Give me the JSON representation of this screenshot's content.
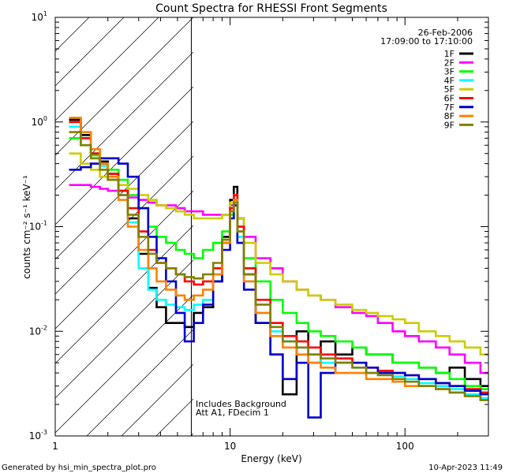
{
  "chart_data": {
    "type": "line",
    "title": "Count Spectra for RHESSI Front Segments",
    "xlabel": "Energy (keV)",
    "ylabel": "counts cm⁻² s⁻¹ keV⁻¹",
    "xscale": "log",
    "yscale": "log",
    "xlim": [
      1,
      300
    ],
    "ylim": [
      0.001,
      10
    ],
    "x_tick_labels": [
      {
        "value": 1,
        "label": "1"
      },
      {
        "value": 10,
        "label": "10"
      },
      {
        "value": 100,
        "label": "100"
      }
    ],
    "y_tick_labels": [
      {
        "value": 0.001,
        "base": "10",
        "exp": "-3"
      },
      {
        "value": 0.01,
        "base": "10",
        "exp": "-2"
      },
      {
        "value": 0.1,
        "base": "10",
        "exp": "-1"
      },
      {
        "value": 1,
        "base": "10",
        "exp": "0"
      },
      {
        "value": 10,
        "base": "10",
        "exp": "1"
      }
    ],
    "date": "26-Feb-2006",
    "time_range": "17:09:00 to 17:10:00",
    "attenuator_threshold_keV": 6,
    "notes": [
      "Includes Background",
      "Att A1, FDecim 1"
    ],
    "footer_left": "Generated by hsi_min_spectra_plot.pro",
    "footer_right": "10-Apr-2023 11:49",
    "series": [
      {
        "name": "1F",
        "color": "#000000",
        "x": [
          1.2,
          1.4,
          1.6,
          1.8,
          2.0,
          2.3,
          2.6,
          3.0,
          3.4,
          3.8,
          4.3,
          4.9,
          5.5,
          6.2,
          7.0,
          8.0,
          9.0,
          10.0,
          10.5,
          11.0,
          12.0,
          14.0,
          17.0,
          20.0,
          24.0,
          28.0,
          33.0,
          40.0,
          50.0,
          60.0,
          70.0,
          85.0,
          100.0,
          120.0,
          150.0,
          180.0,
          220.0,
          270.0
        ],
        "values": [
          1.05,
          0.75,
          0.5,
          0.42,
          0.32,
          0.22,
          0.12,
          0.055,
          0.026,
          0.017,
          0.012,
          0.012,
          0.011,
          0.015,
          0.017,
          0.03,
          0.08,
          0.18,
          0.24,
          0.12,
          0.035,
          0.012,
          0.006,
          0.0025,
          0.01,
          0.005,
          0.008,
          0.006,
          0.007,
          0.006,
          0.006,
          0.005,
          0.005,
          0.0045,
          0.004,
          0.0045,
          0.0035,
          0.003
        ]
      },
      {
        "name": "2F",
        "color": "#ff00ff",
        "x": [
          1.2,
          1.4,
          1.6,
          1.8,
          2.0,
          2.3,
          2.6,
          3.0,
          3.4,
          3.8,
          4.3,
          4.9,
          5.5,
          6.2,
          7.0,
          8.0,
          9.0,
          10.0,
          10.5,
          11.0,
          12.0,
          14.0,
          17.0,
          20.0,
          24.0,
          28.0,
          33.0,
          40.0,
          50.0,
          60.0,
          70.0,
          85.0,
          100.0,
          120.0,
          150.0,
          180.0,
          220.0,
          270.0
        ],
        "values": [
          0.25,
          0.25,
          0.24,
          0.23,
          0.22,
          0.2,
          0.19,
          0.18,
          0.17,
          0.16,
          0.16,
          0.15,
          0.14,
          0.14,
          0.13,
          0.13,
          0.13,
          0.16,
          0.2,
          0.12,
          0.08,
          0.05,
          0.04,
          0.03,
          0.025,
          0.022,
          0.02,
          0.017,
          0.015,
          0.014,
          0.012,
          0.01,
          0.009,
          0.008,
          0.007,
          0.006,
          0.005,
          0.004
        ]
      },
      {
        "name": "3F",
        "color": "#00ff00",
        "x": [
          1.2,
          1.4,
          1.6,
          1.8,
          2.0,
          2.3,
          2.6,
          3.0,
          3.4,
          3.8,
          4.3,
          4.9,
          5.5,
          6.2,
          7.0,
          8.0,
          9.0,
          10.0,
          10.5,
          11.0,
          12.0,
          14.0,
          17.0,
          20.0,
          24.0,
          28.0,
          33.0,
          40.0,
          50.0,
          60.0,
          70.0,
          85.0,
          100.0,
          120.0,
          150.0,
          180.0,
          220.0,
          270.0
        ],
        "values": [
          0.7,
          0.6,
          0.48,
          0.4,
          0.35,
          0.28,
          0.2,
          0.15,
          0.1,
          0.08,
          0.07,
          0.06,
          0.055,
          0.05,
          0.06,
          0.07,
          0.09,
          0.13,
          0.18,
          0.1,
          0.05,
          0.03,
          0.02,
          0.015,
          0.012,
          0.01,
          0.009,
          0.008,
          0.007,
          0.006,
          0.006,
          0.005,
          0.005,
          0.0045,
          0.004,
          0.0035,
          0.003,
          0.0028
        ]
      },
      {
        "name": "4F",
        "color": "#00ffff",
        "x": [
          1.2,
          1.4,
          1.6,
          1.8,
          2.0,
          2.3,
          2.6,
          3.0,
          3.4,
          3.8,
          4.3,
          4.9,
          5.5,
          6.2,
          7.0,
          8.0,
          9.0,
          10.0,
          10.5,
          11.0,
          12.0,
          14.0,
          17.0,
          20.0,
          24.0,
          28.0,
          33.0,
          40.0,
          50.0,
          60.0,
          70.0,
          85.0,
          100.0,
          120.0,
          150.0,
          180.0,
          220.0,
          270.0
        ],
        "values": [
          0.9,
          0.7,
          0.5,
          0.38,
          0.3,
          0.2,
          0.11,
          0.04,
          0.025,
          0.02,
          0.018,
          0.017,
          0.016,
          0.018,
          0.02,
          0.035,
          0.07,
          0.14,
          0.17,
          0.08,
          0.03,
          0.015,
          0.01,
          0.008,
          0.007,
          0.006,
          0.005,
          0.005,
          0.0045,
          0.004,
          0.004,
          0.0037,
          0.0035,
          0.0032,
          0.003,
          0.0028,
          0.0025,
          0.0023
        ]
      },
      {
        "name": "5F",
        "color": "#cccc00",
        "x": [
          1.2,
          1.4,
          1.6,
          1.8,
          2.0,
          2.3,
          2.6,
          3.0,
          3.4,
          3.8,
          4.3,
          4.9,
          5.5,
          6.2,
          7.0,
          8.0,
          9.0,
          10.0,
          10.5,
          11.0,
          12.0,
          14.0,
          17.0,
          20.0,
          24.0,
          28.0,
          33.0,
          40.0,
          50.0,
          60.0,
          70.0,
          85.0,
          100.0,
          120.0,
          150.0,
          180.0,
          220.0,
          270.0
        ],
        "values": [
          0.5,
          0.4,
          0.35,
          0.3,
          0.28,
          0.25,
          0.23,
          0.2,
          0.18,
          0.16,
          0.15,
          0.14,
          0.13,
          0.12,
          0.12,
          0.12,
          0.13,
          0.17,
          0.2,
          0.12,
          0.07,
          0.045,
          0.035,
          0.03,
          0.025,
          0.022,
          0.02,
          0.018,
          0.016,
          0.015,
          0.014,
          0.013,
          0.012,
          0.01,
          0.009,
          0.008,
          0.007,
          0.006
        ]
      },
      {
        "name": "6F",
        "color": "#ff0000",
        "x": [
          1.2,
          1.4,
          1.6,
          1.8,
          2.0,
          2.3,
          2.6,
          3.0,
          3.4,
          3.8,
          4.3,
          4.9,
          5.5,
          6.2,
          7.0,
          8.0,
          9.0,
          10.0,
          10.5,
          11.0,
          12.0,
          14.0,
          17.0,
          20.0,
          24.0,
          28.0,
          33.0,
          40.0,
          50.0,
          60.0,
          70.0,
          85.0,
          100.0,
          120.0,
          150.0,
          180.0,
          220.0,
          270.0
        ],
        "values": [
          1.0,
          0.7,
          0.5,
          0.4,
          0.32,
          0.22,
          0.15,
          0.09,
          0.06,
          0.045,
          0.04,
          0.035,
          0.03,
          0.028,
          0.03,
          0.04,
          0.07,
          0.15,
          0.2,
          0.1,
          0.04,
          0.02,
          0.012,
          0.009,
          0.008,
          0.007,
          0.006,
          0.0055,
          0.005,
          0.0045,
          0.0042,
          0.004,
          0.0038,
          0.0035,
          0.0032,
          0.003,
          0.0028,
          0.0026
        ]
      },
      {
        "name": "7F",
        "color": "#0000cc",
        "x": [
          1.2,
          1.4,
          1.6,
          1.8,
          2.0,
          2.3,
          2.6,
          3.0,
          3.4,
          3.8,
          4.3,
          4.9,
          5.5,
          6.2,
          7.0,
          8.0,
          9.0,
          10.0,
          10.5,
          11.0,
          12.0,
          14.0,
          17.0,
          20.0,
          24.0,
          28.0,
          33.0,
          40.0,
          50.0,
          60.0,
          70.0,
          85.0,
          100.0,
          120.0,
          150.0,
          180.0,
          220.0,
          270.0
        ],
        "values": [
          0.35,
          0.37,
          0.4,
          0.45,
          0.45,
          0.4,
          0.3,
          0.15,
          0.08,
          0.05,
          0.03,
          0.015,
          0.008,
          0.012,
          0.018,
          0.03,
          0.06,
          0.12,
          0.16,
          0.07,
          0.025,
          0.012,
          0.006,
          0.0035,
          0.005,
          0.0015,
          0.004,
          0.005,
          0.005,
          0.0045,
          0.004,
          0.004,
          0.0038,
          0.0035,
          0.0032,
          0.003,
          0.0027,
          0.0025
        ]
      },
      {
        "name": "8F",
        "color": "#ff8000",
        "x": [
          1.2,
          1.4,
          1.6,
          1.8,
          2.0,
          2.3,
          2.6,
          3.0,
          3.4,
          3.8,
          4.3,
          4.9,
          5.5,
          6.2,
          7.0,
          8.0,
          9.0,
          10.0,
          10.5,
          11.0,
          12.0,
          14.0,
          17.0,
          20.0,
          24.0,
          28.0,
          33.0,
          40.0,
          50.0,
          60.0,
          70.0,
          85.0,
          100.0,
          120.0,
          150.0,
          180.0,
          220.0,
          270.0
        ],
        "values": [
          1.1,
          0.8,
          0.55,
          0.4,
          0.3,
          0.18,
          0.1,
          0.06,
          0.04,
          0.03,
          0.025,
          0.022,
          0.02,
          0.022,
          0.025,
          0.035,
          0.07,
          0.14,
          0.18,
          0.09,
          0.03,
          0.015,
          0.009,
          0.007,
          0.006,
          0.005,
          0.0045,
          0.004,
          0.004,
          0.0035,
          0.0035,
          0.0033,
          0.003,
          0.003,
          0.0028,
          0.0026,
          0.0024,
          0.0022
        ]
      },
      {
        "name": "9F",
        "color": "#808000",
        "x": [
          1.2,
          1.4,
          1.6,
          1.8,
          2.0,
          2.3,
          2.6,
          3.0,
          3.4,
          3.8,
          4.3,
          4.9,
          5.5,
          6.2,
          7.0,
          8.0,
          9.0,
          10.0,
          10.5,
          11.0,
          12.0,
          14.0,
          17.0,
          20.0,
          24.0,
          28.0,
          33.0,
          40.0,
          50.0,
          60.0,
          70.0,
          85.0,
          100.0,
          120.0,
          150.0,
          180.0,
          220.0,
          270.0
        ],
        "values": [
          0.8,
          0.6,
          0.45,
          0.35,
          0.28,
          0.2,
          0.13,
          0.08,
          0.055,
          0.045,
          0.04,
          0.035,
          0.033,
          0.032,
          0.035,
          0.045,
          0.075,
          0.14,
          0.17,
          0.09,
          0.035,
          0.018,
          0.011,
          0.008,
          0.007,
          0.006,
          0.0055,
          0.005,
          0.0045,
          0.004,
          0.0038,
          0.0035,
          0.0033,
          0.003,
          0.0028,
          0.0026,
          0.0024,
          0.0022
        ]
      }
    ]
  }
}
